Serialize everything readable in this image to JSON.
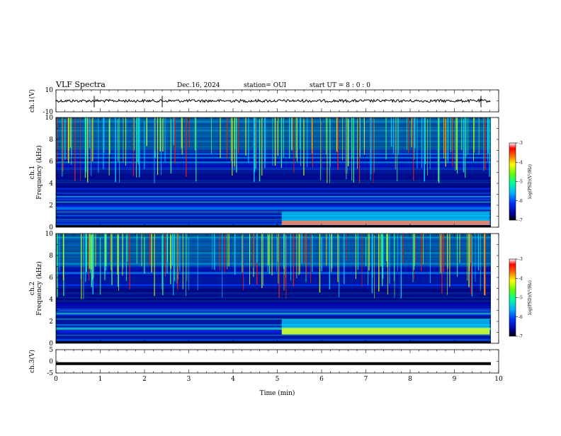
{
  "header": {
    "title": "VLF Spectra",
    "date": "Dec.16, 2024",
    "station": "station= OUI",
    "start": "start  UT =   8  : 0   : 0"
  },
  "colors": {
    "spectrum": [
      "#000080",
      "#0000ff",
      "#0080ff",
      "#00e0ff",
      "#40ff80",
      "#ffff00",
      "#ff8000",
      "#ff0000",
      "#ff80c0",
      "#ffffff"
    ]
  },
  "chart_data": [
    {
      "type": "line",
      "name": "waveform-ch1",
      "ylabel": "ch.1(V)",
      "ylim": [
        -10,
        10
      ],
      "yticks": [
        "10",
        "-10"
      ],
      "baseline": 0,
      "xlim": [
        0,
        10
      ]
    },
    {
      "type": "heatmap",
      "name": "spectrogram-ch1",
      "ylabel": "ch.1 Frequency (kHz)",
      "ylabel_lines": [
        "ch.1",
        "Frequency (kHz)"
      ],
      "ylim": [
        0,
        10
      ],
      "yticks": [
        "0",
        "2",
        "4",
        "6",
        "8",
        "10"
      ],
      "xlim": [
        0,
        10
      ],
      "colorbar": {
        "label": "log(PSD)(V²/Hz)",
        "range": [
          -7,
          -3
        ],
        "ticks": [
          "-3",
          "-4",
          "-5",
          "-6",
          "-7"
        ]
      },
      "features": {
        "sferic_line_bandwidth_kHz": [
          4,
          10
        ],
        "low_band_enhancement_min": [
          5.1,
          9.8
        ],
        "low_band_kHz": [
          0.2,
          0.6
        ]
      }
    },
    {
      "type": "heatmap",
      "name": "spectrogram-ch2",
      "ylabel": "ch.2 Frequency (kHz)",
      "ylabel_lines": [
        "ch.2",
        "Frequency (kHz)"
      ],
      "ylim": [
        0,
        10
      ],
      "yticks": [
        "0",
        "2",
        "4",
        "6",
        "8",
        "10"
      ],
      "xlim": [
        0,
        10
      ],
      "colorbar": {
        "label": "log(PSD)(V²/Hz)",
        "range": [
          -7,
          -3
        ],
        "ticks": [
          "-3",
          "-4",
          "-5",
          "-6",
          "-7"
        ]
      },
      "features": {
        "sferic_line_bandwidth_kHz": [
          4,
          10
        ],
        "low_band_enhancement_min": [
          5.1,
          9.8
        ],
        "low_band_kHz": [
          0.8,
          1.4
        ]
      }
    },
    {
      "type": "line",
      "name": "waveform-ch3",
      "ylabel": "ch.3(V)",
      "ylim": [
        -5,
        5
      ],
      "yticks": [
        "5",
        "0",
        "-5"
      ],
      "baseline": -1,
      "xlim": [
        0,
        10
      ],
      "xlabel": "Time (min)",
      "xticks": [
        "0",
        "1",
        "2",
        "3",
        "4",
        "5",
        "6",
        "7",
        "8",
        "9",
        "10"
      ]
    }
  ]
}
